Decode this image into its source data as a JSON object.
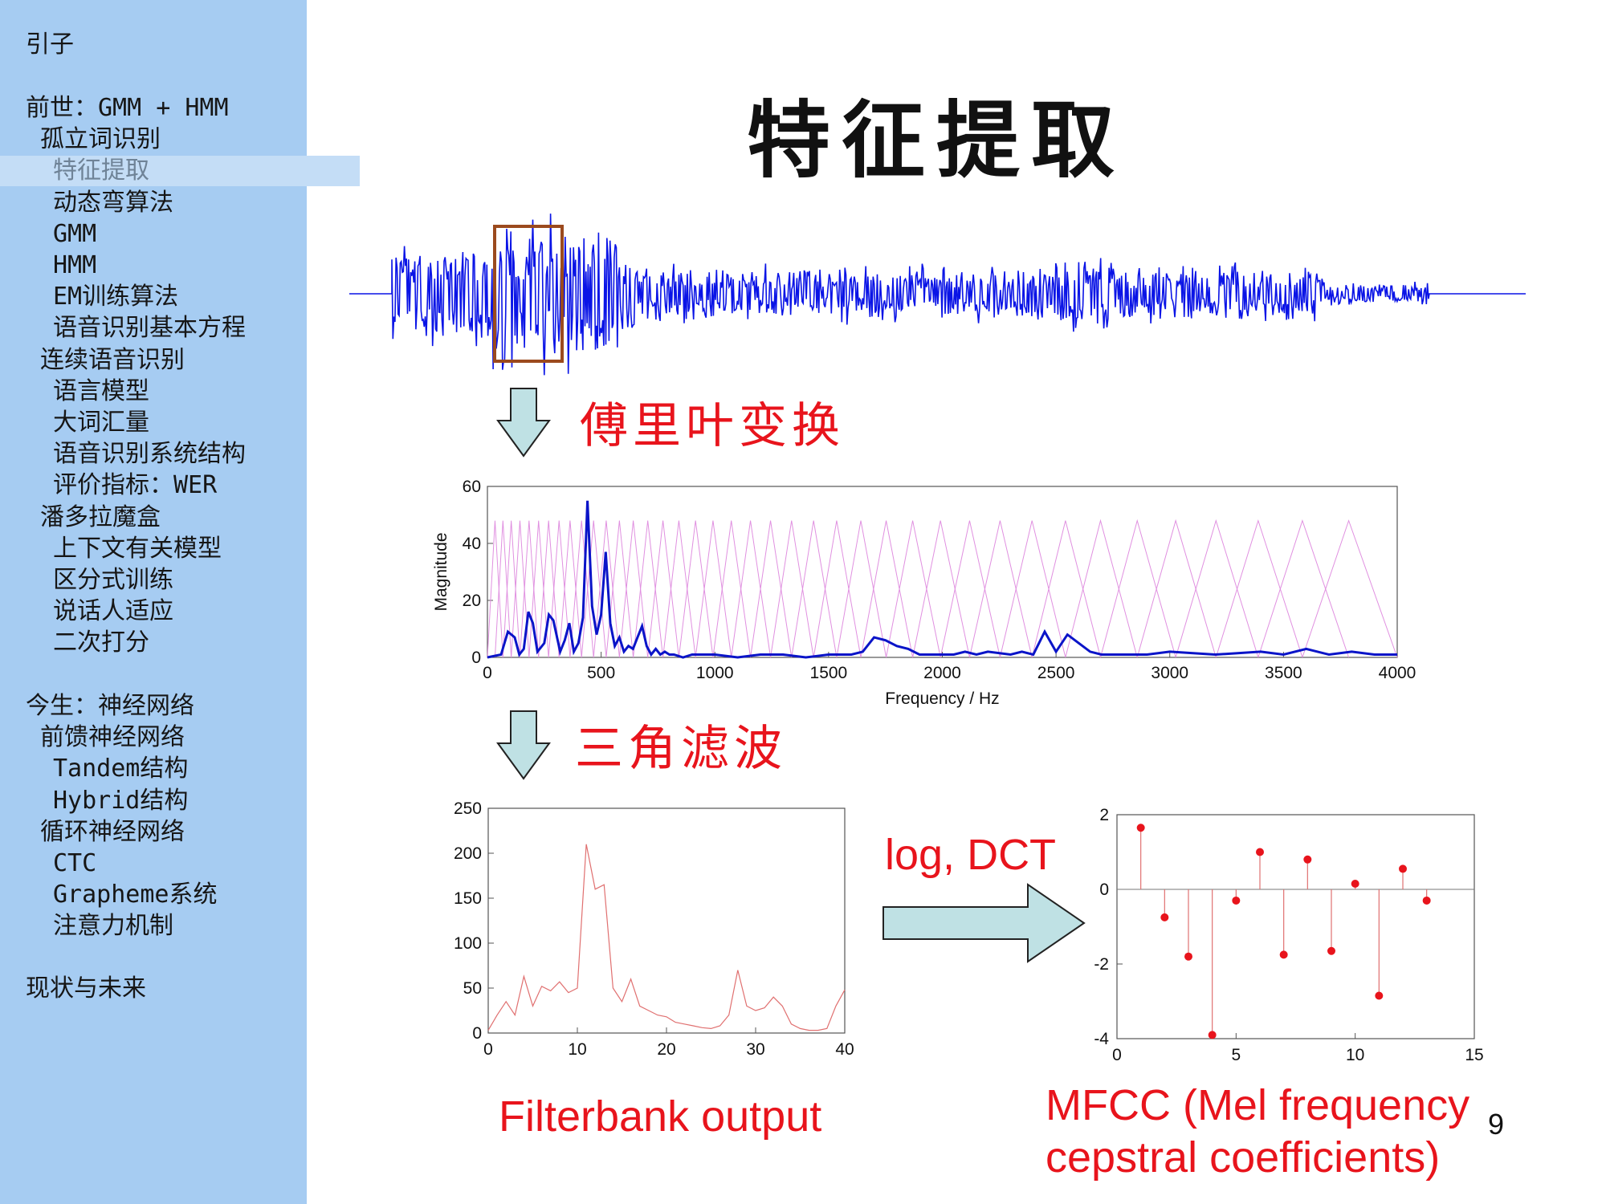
{
  "sidebar": {
    "items": [
      {
        "label": "引子",
        "indent": 0,
        "active": false
      },
      {
        "label": "前世：GMM + HMM",
        "indent": 0,
        "active": false
      },
      {
        "label": "孤立词识别",
        "indent": 1,
        "active": false
      },
      {
        "label": "特征提取",
        "indent": 2,
        "active": true
      },
      {
        "label": "动态弯算法",
        "indent": 2,
        "active": false
      },
      {
        "label": "GMM",
        "indent": 2,
        "active": false
      },
      {
        "label": "HMM",
        "indent": 2,
        "active": false
      },
      {
        "label": "EM训练算法",
        "indent": 2,
        "active": false
      },
      {
        "label": "语音识别基本方程",
        "indent": 2,
        "active": false
      },
      {
        "label": "连续语音识别",
        "indent": 1,
        "active": false
      },
      {
        "label": "语言模型",
        "indent": 2,
        "active": false
      },
      {
        "label": "大词汇量",
        "indent": 2,
        "active": false
      },
      {
        "label": "语音识别系统结构",
        "indent": 2,
        "active": false
      },
      {
        "label": "评价指标：WER",
        "indent": 2,
        "active": false
      },
      {
        "label": "潘多拉魔盒",
        "indent": 1,
        "active": false
      },
      {
        "label": "上下文有关模型",
        "indent": 2,
        "active": false
      },
      {
        "label": "区分式训练",
        "indent": 2,
        "active": false
      },
      {
        "label": "说话人适应",
        "indent": 2,
        "active": false
      },
      {
        "label": "二次打分",
        "indent": 2,
        "active": false
      },
      {
        "label": "今生：神经网络",
        "indent": 0,
        "active": false
      },
      {
        "label": "前馈神经网络",
        "indent": 1,
        "active": false
      },
      {
        "label": "Tandem结构",
        "indent": 2,
        "active": false
      },
      {
        "label": "Hybrid结构",
        "indent": 2,
        "active": false
      },
      {
        "label": "循环神经网络",
        "indent": 1,
        "active": false
      },
      {
        "label": "CTC",
        "indent": 2,
        "active": false
      },
      {
        "label": "Grapheme系统",
        "indent": 2,
        "active": false
      },
      {
        "label": "注意力机制",
        "indent": 2,
        "active": false
      },
      {
        "label": "现状与未来",
        "indent": 0,
        "active": false
      }
    ]
  },
  "slide": {
    "title": "特征提取",
    "fourier_label": "傅里叶变换",
    "triangle_label": "三角滤波",
    "log_dct_label": "log, DCT",
    "filterbank_label": "Filterbank output",
    "mfcc_label_line1": "MFCC (Mel frequency",
    "mfcc_label_line2": "cepstral coefficients)",
    "page_number": "9"
  },
  "colors": {
    "sidebar_bg": "#a6ccf2",
    "active_item_bg": "#c4ddf6",
    "accent_red": "#e8141c",
    "waveform_blue": "#0a14e6",
    "window_box": "#9b4a1e",
    "arrow_fill": "#bfe1e4",
    "filter_pink": "#e090e0"
  },
  "chart_data": [
    {
      "type": "line",
      "name": "spectrum",
      "xlabel": "Frequency / Hz",
      "ylabel": "Magnitude",
      "xlim": [
        0,
        4000
      ],
      "ylim": [
        0,
        60
      ],
      "xticks": [
        0,
        500,
        1000,
        1500,
        2000,
        2500,
        3000,
        3500,
        4000
      ],
      "yticks": [
        0,
        20,
        40,
        60
      ],
      "x": [
        0,
        60,
        90,
        120,
        140,
        160,
        180,
        200,
        220,
        250,
        270,
        290,
        320,
        340,
        360,
        380,
        400,
        420,
        440,
        460,
        480,
        500,
        520,
        540,
        560,
        580,
        600,
        620,
        640,
        660,
        680,
        700,
        720,
        740,
        760,
        780,
        800,
        820,
        860,
        900,
        950,
        1000,
        1100,
        1200,
        1300,
        1400,
        1500,
        1600,
        1650,
        1700,
        1750,
        1800,
        1850,
        1900,
        1950,
        2000,
        2050,
        2100,
        2150,
        2200,
        2300,
        2350,
        2400,
        2450,
        2500,
        2550,
        2600,
        2650,
        2700,
        2800,
        2900,
        3000,
        3200,
        3400,
        3500,
        3600,
        3700,
        3800,
        3900,
        4000
      ],
      "values": [
        0,
        1,
        9,
        7,
        1,
        3,
        16,
        12,
        2,
        5,
        15,
        13,
        2,
        6,
        12,
        2,
        5,
        14,
        55,
        18,
        8,
        15,
        37,
        12,
        4,
        7,
        2,
        4,
        3,
        7,
        11,
        4,
        1,
        3,
        1,
        2,
        1,
        1,
        0,
        1,
        1,
        1,
        0,
        1,
        1,
        0,
        1,
        1,
        2,
        7,
        6,
        4,
        3,
        1,
        1,
        1,
        1,
        2,
        1,
        2,
        1,
        2,
        1,
        9,
        2,
        8,
        5,
        2,
        1,
        1,
        1,
        2,
        1,
        2,
        1,
        3,
        1,
        2,
        1,
        1
      ]
    },
    {
      "type": "line",
      "name": "filterbank",
      "xlim": [
        0,
        40
      ],
      "ylim": [
        0,
        250
      ],
      "xticks": [
        0,
        10,
        20,
        30,
        40
      ],
      "yticks": [
        0,
        50,
        100,
        150,
        200,
        250
      ],
      "x": [
        0,
        1,
        2,
        3,
        4,
        5,
        6,
        7,
        8,
        9,
        10,
        11,
        12,
        13,
        14,
        15,
        16,
        17,
        18,
        19,
        20,
        21,
        22,
        23,
        24,
        25,
        26,
        27,
        28,
        29,
        30,
        31,
        32,
        33,
        34,
        35,
        36,
        37,
        38,
        39,
        40
      ],
      "values": [
        3,
        20,
        35,
        20,
        63,
        30,
        52,
        47,
        57,
        45,
        50,
        210,
        160,
        165,
        50,
        35,
        60,
        30,
        25,
        20,
        18,
        12,
        10,
        8,
        6,
        5,
        8,
        20,
        70,
        30,
        25,
        28,
        40,
        30,
        10,
        5,
        3,
        3,
        5,
        30,
        48
      ]
    },
    {
      "type": "scatter",
      "name": "mfcc",
      "xlim": [
        0,
        15
      ],
      "ylim": [
        -4,
        2
      ],
      "xticks": [
        0,
        5,
        10,
        15
      ],
      "yticks": [
        -4,
        -2,
        0,
        2
      ],
      "x": [
        1,
        2,
        3,
        4,
        5,
        6,
        7,
        8,
        9,
        10,
        11,
        12,
        13
      ],
      "values": [
        1.65,
        -0.75,
        -1.8,
        -3.9,
        -0.3,
        1.0,
        -1.75,
        0.8,
        -1.65,
        0.15,
        -2.85,
        0.55,
        -0.3
      ]
    }
  ]
}
